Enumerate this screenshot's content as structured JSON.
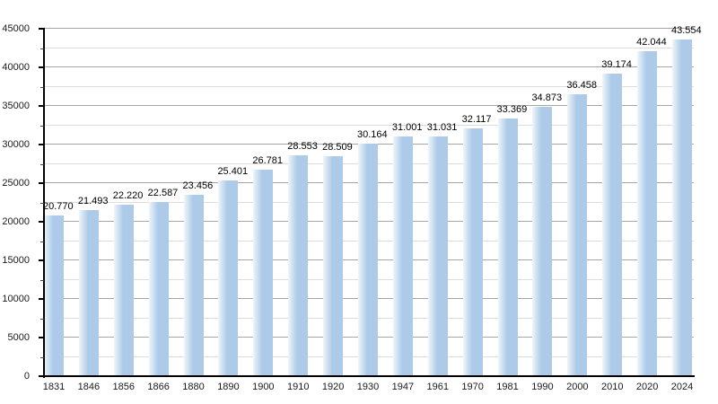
{
  "chart_data": {
    "type": "bar",
    "title": "",
    "xlabel": "",
    "ylabel": "",
    "categories": [
      "1831",
      "1846",
      "1856",
      "1866",
      "1880",
      "1890",
      "1900",
      "1910",
      "1920",
      "1930",
      "1947",
      "1961",
      "1970",
      "1981",
      "1990",
      "2000",
      "2010",
      "2020",
      "2024"
    ],
    "values": [
      20770,
      21493,
      22220,
      22587,
      23456,
      25401,
      26781,
      28553,
      28509,
      30164,
      31001,
      31031,
      32117,
      33369,
      34873,
      36458,
      39174,
      42044,
      43554
    ],
    "value_labels": [
      "20.770",
      "21.493",
      "22.220",
      "22.587",
      "23.456",
      "25.401",
      "26.781",
      "28.553",
      "28.509",
      "30.164",
      "31.001",
      "31.031",
      "32.117",
      "33.369",
      "34.873",
      "36.458",
      "39.174",
      "42.044",
      "43.554"
    ],
    "y_tick_labels": [
      "0",
      "5000",
      "10000",
      "15000",
      "20000",
      "25000",
      "30000",
      "35000",
      "40000",
      "45000"
    ],
    "ylim": [
      0,
      45000
    ],
    "ytick_step": 5000,
    "minor_ytick_step": 2500,
    "grid": true,
    "legend": false,
    "colors": {
      "bar": "#adcbe8",
      "bar_gradient_left": "#eff6fb",
      "gridline_major": "#a6a6a6",
      "gridline_minor": "#dcdcdc",
      "axis": "#000000",
      "label_text": "#000000"
    }
  }
}
